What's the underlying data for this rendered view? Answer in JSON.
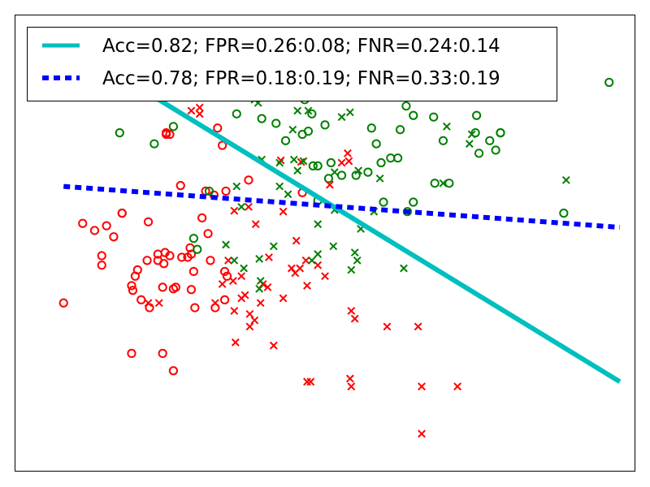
{
  "chart_data": {
    "type": "scatter",
    "title": "",
    "xlabel": "",
    "ylabel": "",
    "axes_visible": false,
    "grid": false,
    "legend_position": "top-left",
    "xlim": [
      -1.7,
      3.5
    ],
    "ylim": [
      -3.0,
      2.8
    ],
    "classes": [
      {
        "marker": "o",
        "color": "#ff0000"
      },
      {
        "marker": "o",
        "color": "#008000"
      },
      {
        "marker": "x",
        "color": "#ff0000"
      },
      {
        "marker": "x",
        "color": "#008000"
      }
    ],
    "points": {
      "red_o": [
        [
          -1.29,
          -0.86
        ],
        [
          -1.13,
          0.15
        ],
        [
          -1.03,
          0.06
        ],
        [
          -0.97,
          -0.38
        ],
        [
          -0.97,
          -0.26
        ],
        [
          -0.93,
          0.12
        ],
        [
          -0.87,
          -0.02
        ],
        [
          -0.8,
          0.28
        ],
        [
          -0.8,
          0.28
        ],
        [
          -0.72,
          -0.64
        ],
        [
          -0.72,
          -1.5
        ],
        [
          -0.71,
          -0.7
        ],
        [
          -0.69,
          -0.52
        ],
        [
          -0.67,
          -0.44
        ],
        [
          -0.64,
          -0.82
        ],
        [
          -0.59,
          -0.32
        ],
        [
          -0.58,
          0.17
        ],
        [
          -0.57,
          -0.92
        ],
        [
          -0.5,
          -0.24
        ],
        [
          -0.5,
          -0.32
        ],
        [
          -0.46,
          -1.5
        ],
        [
          -0.46,
          -0.66
        ],
        [
          -0.45,
          -0.36
        ],
        [
          -0.44,
          -0.22
        ],
        [
          -0.43,
          1.28
        ],
        [
          -0.43,
          1.3
        ],
        [
          -0.4,
          1.28
        ],
        [
          -0.4,
          -0.26
        ],
        [
          -0.37,
          -1.72
        ],
        [
          -0.37,
          -0.68
        ],
        [
          -0.35,
          -0.66
        ],
        [
          -0.31,
          0.63
        ],
        [
          -0.3,
          -0.28
        ],
        [
          -0.25,
          -0.28
        ],
        [
          -0.23,
          -0.16
        ],
        [
          -0.22,
          -0.24
        ],
        [
          -0.22,
          -0.69
        ],
        [
          -0.2,
          -0.46
        ],
        [
          -0.19,
          -0.92
        ],
        [
          -0.13,
          0.22
        ],
        [
          -0.1,
          0.56
        ],
        [
          -0.08,
          0.02
        ],
        [
          -0.06,
          -0.32
        ],
        [
          -0.03,
          0.51
        ],
        [
          -0.02,
          -0.92
        ],
        [
          0.0,
          1.36
        ],
        [
          0.04,
          1.14
        ],
        [
          0.06,
          -0.46
        ],
        [
          0.06,
          -0.82
        ],
        [
          0.07,
          0.56
        ],
        [
          0.08,
          -0.52
        ],
        [
          0.26,
          0.7
        ],
        [
          0.71,
          0.54
        ]
      ],
      "green_o": [
        [
          -0.82,
          1.3
        ],
        [
          -0.53,
          1.16
        ],
        [
          -0.37,
          1.38
        ],
        [
          -0.24,
          1.84
        ],
        [
          -0.2,
          -0.04
        ],
        [
          -0.17,
          -0.18
        ],
        [
          -0.07,
          0.56
        ],
        [
          0.16,
          1.54
        ],
        [
          0.37,
          1.48
        ],
        [
          0.49,
          1.42
        ],
        [
          0.52,
          2.06
        ],
        [
          0.57,
          1.2
        ],
        [
          0.58,
          1.9
        ],
        [
          0.71,
          1.28
        ],
        [
          0.73,
          1.72
        ],
        [
          0.76,
          1.32
        ],
        [
          0.79,
          1.54
        ],
        [
          0.8,
          0.88
        ],
        [
          0.84,
          0.88
        ],
        [
          0.84,
          0.44
        ],
        [
          0.9,
          1.4
        ],
        [
          0.93,
          0.72
        ],
        [
          0.95,
          0.92
        ],
        [
          0.97,
          2.0
        ],
        [
          1.04,
          0.76
        ],
        [
          1.11,
          2.0
        ],
        [
          1.16,
          0.76
        ],
        [
          1.26,
          0.8
        ],
        [
          1.29,
          1.36
        ],
        [
          1.33,
          1.16
        ],
        [
          1.37,
          0.92
        ],
        [
          1.39,
          0.42
        ],
        [
          1.45,
          0.98
        ],
        [
          1.49,
          1.88
        ],
        [
          1.49,
          1.96
        ],
        [
          1.51,
          0.98
        ],
        [
          1.53,
          1.34
        ],
        [
          1.58,
          1.64
        ],
        [
          1.59,
          0.3
        ],
        [
          1.61,
          1.88
        ],
        [
          1.61,
          2.08
        ],
        [
          1.64,
          1.52
        ],
        [
          1.64,
          0.42
        ],
        [
          1.68,
          1.76
        ],
        [
          1.72,
          1.76
        ],
        [
          1.81,
          1.5
        ],
        [
          1.82,
          0.66
        ],
        [
          1.89,
          1.2
        ],
        [
          1.94,
          0.66
        ],
        [
          2.16,
          1.3
        ],
        [
          2.17,
          1.52
        ],
        [
          2.19,
          1.04
        ],
        [
          2.28,
          1.2
        ],
        [
          2.33,
          1.08
        ],
        [
          2.37,
          1.3
        ],
        [
          2.37,
          1.3
        ],
        [
          2.76,
          2.08
        ],
        [
          2.9,
          0.28
        ],
        [
          3.28,
          1.94
        ]
      ],
      "red_x": [
        [
          -0.58,
          -0.86
        ],
        [
          -0.49,
          -0.86
        ],
        [
          -0.22,
          1.58
        ],
        [
          -0.15,
          1.62
        ],
        [
          -0.15,
          1.54
        ],
        [
          -0.02,
          -0.86
        ],
        [
          0.04,
          -0.62
        ],
        [
          0.09,
          -0.32
        ],
        [
          0.13,
          -0.58
        ],
        [
          0.14,
          -0.96
        ],
        [
          0.14,
          0.31
        ],
        [
          0.15,
          -1.36
        ],
        [
          0.2,
          -0.52
        ],
        [
          0.2,
          -0.8
        ],
        [
          0.23,
          -0.76
        ],
        [
          0.26,
          0.36
        ],
        [
          0.27,
          -1.16
        ],
        [
          0.27,
          -1.0
        ],
        [
          0.31,
          -1.08
        ],
        [
          0.32,
          0.14
        ],
        [
          0.36,
          -0.86
        ],
        [
          0.38,
          -0.62
        ],
        [
          0.42,
          -0.66
        ],
        [
          0.43,
          -0.28
        ],
        [
          0.47,
          -1.4
        ],
        [
          0.53,
          0.95
        ],
        [
          0.55,
          0.3
        ],
        [
          0.55,
          -0.8
        ],
        [
          0.62,
          -0.42
        ],
        [
          0.65,
          -0.48
        ],
        [
          0.66,
          -0.07
        ],
        [
          0.69,
          -0.42
        ],
        [
          0.7,
          0.93
        ],
        [
          0.74,
          -0.32
        ],
        [
          0.75,
          -0.64
        ],
        [
          0.75,
          -1.86
        ],
        [
          0.78,
          -1.86
        ],
        [
          0.84,
          -0.38
        ],
        [
          0.9,
          -0.52
        ],
        [
          0.94,
          0.64
        ],
        [
          1.04,
          0.92
        ],
        [
          1.09,
          1.04
        ],
        [
          1.1,
          0.94
        ],
        [
          1.11,
          -1.82
        ],
        [
          1.12,
          -1.92
        ],
        [
          1.12,
          -0.96
        ],
        [
          1.15,
          -1.06
        ],
        [
          1.29,
          2.3
        ],
        [
          1.42,
          -1.16
        ],
        [
          1.68,
          -1.16
        ],
        [
          1.71,
          -1.92
        ],
        [
          1.71,
          -2.52
        ],
        [
          2.01,
          -1.92
        ]
      ],
      "green_x": [
        [
          0.07,
          -0.12
        ],
        [
          0.14,
          -0.32
        ],
        [
          0.16,
          0.62
        ],
        [
          0.2,
          0.36
        ],
        [
          0.22,
          -0.42
        ],
        [
          0.31,
          1.72
        ],
        [
          0.34,
          1.68
        ],
        [
          0.35,
          -0.3
        ],
        [
          0.35,
          -0.68
        ],
        [
          0.36,
          -0.58
        ],
        [
          0.37,
          0.96
        ],
        [
          0.47,
          -0.14
        ],
        [
          0.52,
          0.92
        ],
        [
          0.52,
          0.62
        ],
        [
          0.59,
          0.52
        ],
        [
          0.63,
          1.34
        ],
        [
          0.64,
          0.96
        ],
        [
          0.67,
          0.82
        ],
        [
          0.67,
          1.58
        ],
        [
          0.72,
          0.94
        ],
        [
          0.76,
          1.58
        ],
        [
          0.79,
          -0.32
        ],
        [
          0.84,
          -0.24
        ],
        [
          0.84,
          0.14
        ],
        [
          0.97,
          -0.14
        ],
        [
          0.98,
          0.8
        ],
        [
          0.98,
          0.32
        ],
        [
          1.04,
          1.5
        ],
        [
          1.11,
          1.56
        ],
        [
          1.12,
          -0.44
        ],
        [
          1.15,
          -0.22
        ],
        [
          1.17,
          -0.32
        ],
        [
          1.18,
          0.82
        ],
        [
          1.2,
          0.08
        ],
        [
          1.31,
          0.3
        ],
        [
          1.36,
          0.72
        ],
        [
          1.56,
          -0.42
        ],
        [
          1.76,
          1.76
        ],
        [
          1.76,
          1.88
        ],
        [
          1.86,
          1.8
        ],
        [
          1.89,
          0.66
        ],
        [
          1.92,
          1.38
        ],
        [
          2.11,
          1.16
        ],
        [
          2.13,
          1.28
        ],
        [
          2.92,
          0.7
        ]
      ]
    },
    "lines": [
      {
        "name": "Acc=0.82; FPR=0.26:0.08; FNR=0.24:0.14",
        "style": "solid",
        "color": "#00bfbf",
        "x": [
          -1.29,
          3.37
        ],
        "y": [
          2.46,
          -1.86
        ]
      },
      {
        "name": "Acc=0.78; FPR=0.18:0.19; FNR=0.33:0.19",
        "style": "dotted",
        "color": "#0000ff",
        "x": [
          -1.29,
          3.37
        ],
        "y": [
          0.62,
          0.1
        ]
      }
    ]
  }
}
